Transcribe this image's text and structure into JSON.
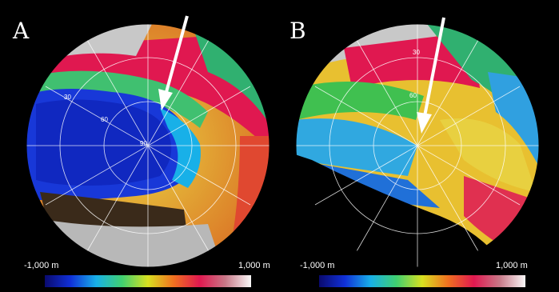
{
  "panels": [
    {
      "letter": "A",
      "lat_labels": [
        "30",
        "60",
        "90"
      ],
      "scale": {
        "min_label": "-1,000 m",
        "max_label": "1,000 m"
      }
    },
    {
      "letter": "B",
      "lat_labels": [
        "30",
        "60"
      ],
      "scale": {
        "min_label": "-1,000 m",
        "max_label": "1,000 m"
      }
    }
  ],
  "colorbar_stops": [
    "#0a0a6e",
    "#1030d8",
    "#18b0e8",
    "#40d070",
    "#d8e020",
    "#f07020",
    "#e01850",
    "#c87888",
    "#f8f8f8"
  ]
}
